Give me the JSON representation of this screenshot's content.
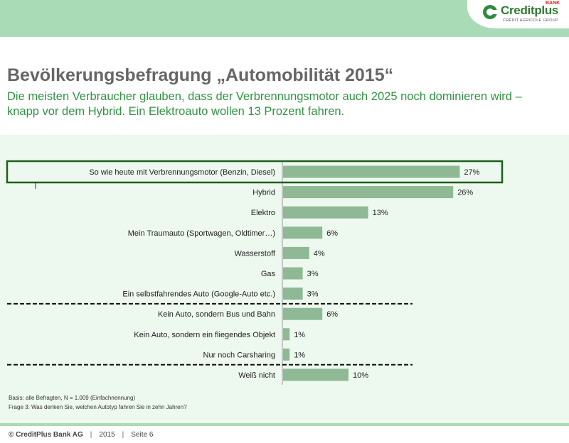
{
  "header": {
    "logo_name": "Creditplus",
    "logo_badge": "BANK",
    "logo_tagline": "CRÉDIT AGRICOLE GROUP",
    "logo_color": "#2e8b3e",
    "topbar_color": "#a9dcb6"
  },
  "title": "Bevölkerungsbefragung „Automobilität 2015“",
  "subtitle": "Die meisten Verbraucher glauben, dass der Verbrennungsmotor auch 2025 noch dominieren wird – knapp vor dem Hybrid. Ein Elektroauto wollen 13 Prozent fahren.",
  "chart_data": {
    "type": "bar",
    "orientation": "horizontal",
    "bar_color": "#8fb994",
    "highlight_color": "#1e5e1e",
    "highlighted_category": "So wie heute mit Verbrennungsmotor (Benzin, Diesel)",
    "categories": [
      "So wie heute mit Verbrennungsmotor (Benzin, Diesel)",
      "Hybrid",
      "Elektro",
      "Mein Traumauto (Sportwagen, Oldtimer…)",
      "Wasserstoff",
      "Gas",
      "Ein selbstfahrendes Auto (Google-Auto etc.)",
      "Kein Auto, sondern Bus und Bahn",
      "Kein Auto, sondern ein fliegendes Objekt",
      "Nur noch Carsharing",
      "Weiß nicht"
    ],
    "values": [
      27,
      26,
      13,
      6,
      4,
      3,
      3,
      6,
      1,
      1,
      10
    ],
    "value_labels": [
      "27%",
      "26%",
      "13%",
      "6%",
      "4%",
      "3%",
      "3%",
      "6%",
      "1%",
      "1%",
      "10%"
    ],
    "unit": "%",
    "group_separators_after": [
      6,
      9
    ],
    "grid": false
  },
  "footnotes": [
    "Basis: alle Befragten, N = 1.009 (Einfachnennung)",
    "Frage 3: Was denken Sie, welchen Autotyp fahren Sie in zehn Jahren?"
  ],
  "footer": {
    "copyright": "© CreditPlus Bank AG",
    "year": "2015",
    "page": "Seite 6"
  }
}
